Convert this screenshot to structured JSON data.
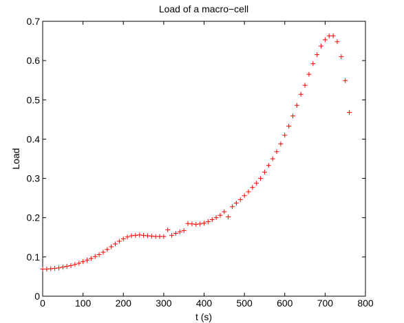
{
  "chart_data": {
    "type": "scatter",
    "title": "Load of a macro−cell",
    "xlabel": "t (s)",
    "ylabel": "Load",
    "xlim": [
      0,
      800
    ],
    "ylim": [
      0,
      0.7
    ],
    "xticks": [
      "0",
      "100",
      "200",
      "300",
      "400",
      "500",
      "600",
      "700",
      "800"
    ],
    "yticks": [
      "0",
      "0.1",
      "0.2",
      "0.3",
      "0.4",
      "0.5",
      "0.6",
      "0.7"
    ],
    "grid": false,
    "marker": "+",
    "colors": {
      "marker": "#ff0000",
      "axis": "#000000",
      "background": "#ffffff"
    },
    "series": [
      {
        "x": [
          0,
          10,
          20,
          30,
          40,
          50,
          60,
          70,
          80,
          90,
          100,
          110,
          120,
          130,
          140,
          150,
          160,
          170,
          180,
          190,
          200,
          210,
          220,
          230,
          240,
          250,
          260,
          270,
          280,
          290,
          300,
          310,
          320,
          330,
          340,
          350,
          360,
          370,
          380,
          390,
          400,
          410,
          420,
          430,
          440,
          450,
          460,
          470,
          480,
          490,
          500,
          510,
          520,
          530,
          540,
          550,
          560,
          570,
          580,
          590,
          600,
          610,
          620,
          630,
          640,
          650,
          660,
          670,
          680,
          690,
          700,
          710,
          720,
          730,
          740,
          750,
          760
        ],
        "y": [
          0.069,
          0.069,
          0.07,
          0.071,
          0.072,
          0.074,
          0.076,
          0.078,
          0.081,
          0.084,
          0.088,
          0.092,
          0.096,
          0.101,
          0.106,
          0.112,
          0.119,
          0.126,
          0.133,
          0.14,
          0.146,
          0.151,
          0.154,
          0.155,
          0.156,
          0.155,
          0.154,
          0.153,
          0.152,
          0.152,
          0.152,
          0.169,
          0.155,
          0.16,
          0.164,
          0.167,
          0.185,
          0.184,
          0.183,
          0.184,
          0.186,
          0.19,
          0.195,
          0.2,
          0.206,
          0.215,
          0.202,
          0.228,
          0.237,
          0.246,
          0.256,
          0.266,
          0.277,
          0.288,
          0.3,
          0.316,
          0.333,
          0.35,
          0.368,
          0.388,
          0.41,
          0.433,
          0.459,
          0.486,
          0.514,
          0.537,
          0.565,
          0.592,
          0.615,
          0.637,
          0.653,
          0.663,
          0.663,
          0.648,
          0.61,
          0.549,
          0.468
        ]
      }
    ]
  }
}
